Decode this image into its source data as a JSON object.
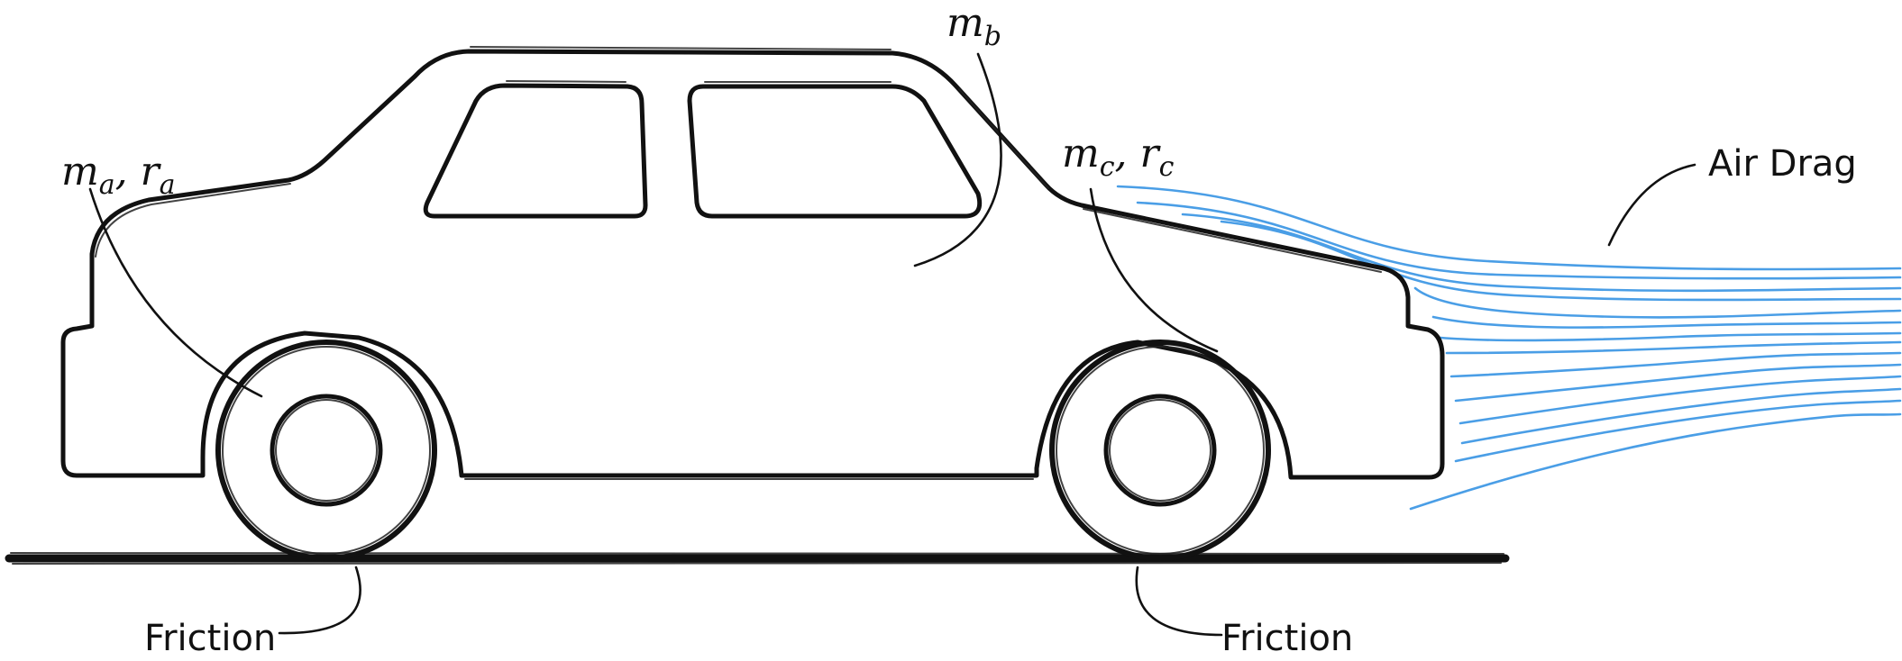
{
  "labels": {
    "rear_wheel": {
      "var1": "m",
      "sub1": "a",
      "sep": ", ",
      "var2": "r",
      "sub2": "a"
    },
    "body": {
      "var1": "m",
      "sub1": "b"
    },
    "front_wheel": {
      "var1": "m",
      "sub1": "c",
      "sep": ", ",
      "var2": "r",
      "sub2": "c"
    },
    "air_drag": "Air Drag",
    "friction_rear": "Friction",
    "friction_front": "Friction"
  },
  "colors": {
    "ink": "#111111",
    "air_flow": "#4a9ee6"
  }
}
